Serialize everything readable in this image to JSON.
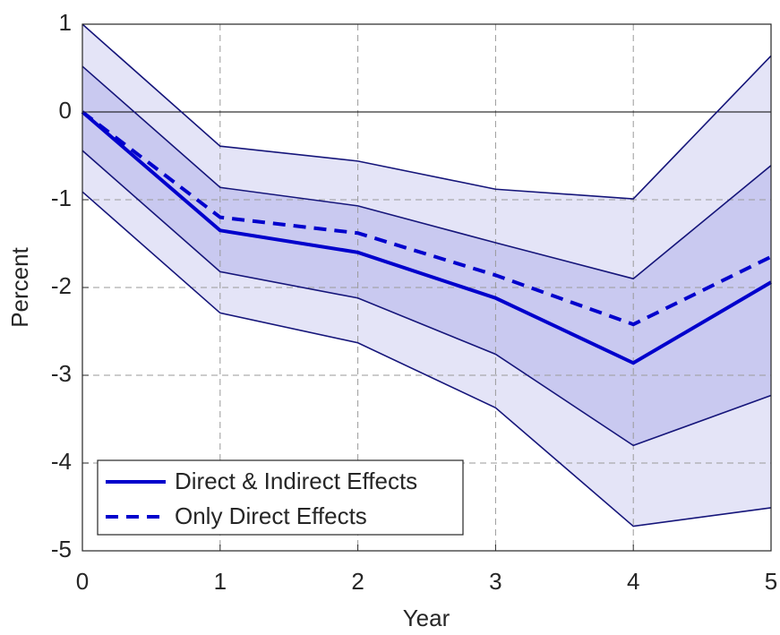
{
  "chart_data": {
    "type": "line",
    "x": [
      0,
      1,
      2,
      3,
      4,
      5
    ],
    "series": [
      {
        "name": "Direct & Indirect Effects",
        "color": "#0000cc",
        "style": "solid",
        "values": [
          0,
          -1.35,
          -1.6,
          -2.12,
          -2.86,
          -1.94
        ]
      },
      {
        "name": "Only Direct Effects",
        "color": "#0000cc",
        "style": "dashed",
        "values": [
          0,
          -1.2,
          -1.38,
          -1.86,
          -2.42,
          -1.65
        ]
      }
    ],
    "bands": [
      {
        "upper": [
          1,
          -0.39,
          -0.56,
          -0.88,
          -0.99,
          0.64
        ],
        "lower": [
          -0.91,
          -2.29,
          -2.63,
          -3.37,
          -4.72,
          -4.51
        ],
        "color": "#e4e4f7",
        "edge_color": "#15157a"
      },
      {
        "upper": [
          0.52,
          -0.86,
          -1.07,
          -1.49,
          -1.9,
          -0.61
        ],
        "lower": [
          -0.44,
          -1.82,
          -2.12,
          -2.76,
          -3.8,
          -3.23
        ],
        "color": "#c9c9f0",
        "edge_color": "#15157a"
      }
    ],
    "xlabel": "Year",
    "ylabel": "Percent",
    "xlim": [
      0,
      5
    ],
    "ylim": [
      -5,
      1
    ],
    "xticks": [
      0,
      1,
      2,
      3,
      4,
      5
    ],
    "yticks": [
      -5,
      -4,
      -3,
      -2,
      -1,
      0,
      1
    ],
    "grid": true,
    "legend": "lower left"
  }
}
